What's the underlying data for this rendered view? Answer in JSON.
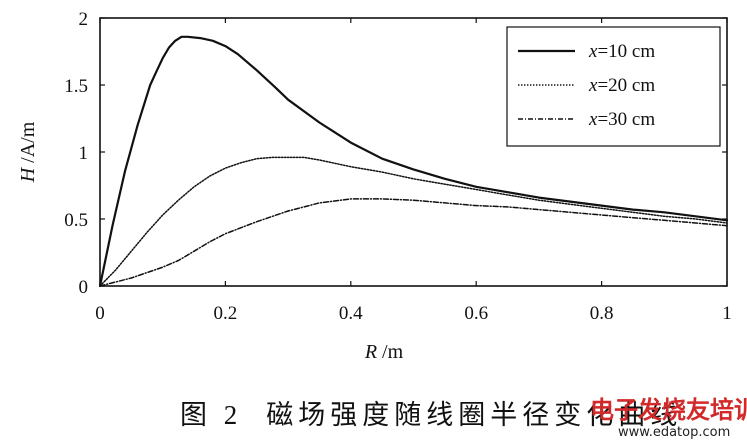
{
  "chart_data": {
    "type": "line",
    "xlabel_var": "R",
    "xlabel_unit": " /m",
    "ylabel_var": "H",
    "ylabel_unit": " /A/m",
    "xlim": [
      0,
      1
    ],
    "ylim": [
      0,
      2
    ],
    "x_ticks": [
      "0",
      "0.2",
      "0.4",
      "0.6",
      "0.8",
      "1"
    ],
    "x_tick_values": [
      0,
      0.2,
      0.4,
      0.6,
      0.8,
      1
    ],
    "y_ticks": [
      "0",
      "0.5",
      "1",
      "1.5",
      "2"
    ],
    "y_tick_values": [
      0,
      0.5,
      1,
      1.5,
      2
    ],
    "grid": false,
    "legend_position": "top-right",
    "series": [
      {
        "var": "x",
        "name_rest": "=10 cm",
        "style": "solid",
        "points": [
          [
            0,
            0
          ],
          [
            0.02,
            0.45
          ],
          [
            0.04,
            0.86
          ],
          [
            0.06,
            1.2
          ],
          [
            0.08,
            1.5
          ],
          [
            0.09,
            1.6
          ],
          [
            0.1,
            1.7
          ],
          [
            0.11,
            1.78
          ],
          [
            0.12,
            1.83
          ],
          [
            0.13,
            1.86
          ],
          [
            0.14,
            1.86
          ],
          [
            0.16,
            1.85
          ],
          [
            0.18,
            1.83
          ],
          [
            0.2,
            1.79
          ],
          [
            0.22,
            1.73
          ],
          [
            0.25,
            1.61
          ],
          [
            0.28,
            1.48
          ],
          [
            0.3,
            1.39
          ],
          [
            0.35,
            1.22
          ],
          [
            0.4,
            1.07
          ],
          [
            0.45,
            0.95
          ],
          [
            0.5,
            0.87
          ],
          [
            0.55,
            0.8
          ],
          [
            0.6,
            0.74
          ],
          [
            0.65,
            0.7
          ],
          [
            0.7,
            0.66
          ],
          [
            0.75,
            0.63
          ],
          [
            0.8,
            0.6
          ],
          [
            0.85,
            0.57
          ],
          [
            0.9,
            0.55
          ],
          [
            0.95,
            0.52
          ],
          [
            1.0,
            0.49
          ]
        ]
      },
      {
        "var": "x",
        "name_rest": "=20 cm",
        "style": "dotted",
        "points": [
          [
            0,
            0
          ],
          [
            0.025,
            0.12
          ],
          [
            0.05,
            0.26
          ],
          [
            0.075,
            0.4
          ],
          [
            0.1,
            0.53
          ],
          [
            0.125,
            0.64
          ],
          [
            0.15,
            0.74
          ],
          [
            0.175,
            0.82
          ],
          [
            0.2,
            0.88
          ],
          [
            0.225,
            0.92
          ],
          [
            0.25,
            0.95
          ],
          [
            0.275,
            0.96
          ],
          [
            0.3,
            0.96
          ],
          [
            0.325,
            0.96
          ],
          [
            0.35,
            0.94
          ],
          [
            0.4,
            0.89
          ],
          [
            0.45,
            0.85
          ],
          [
            0.5,
            0.8
          ],
          [
            0.55,
            0.76
          ],
          [
            0.6,
            0.72
          ],
          [
            0.65,
            0.68
          ],
          [
            0.7,
            0.64
          ],
          [
            0.75,
            0.61
          ],
          [
            0.8,
            0.58
          ],
          [
            0.85,
            0.55
          ],
          [
            0.9,
            0.52
          ],
          [
            0.95,
            0.5
          ],
          [
            1.0,
            0.47
          ]
        ]
      },
      {
        "var": "x",
        "name_rest": "=30 cm",
        "style": "dashdot",
        "points": [
          [
            0,
            0
          ],
          [
            0.05,
            0.06
          ],
          [
            0.1,
            0.14
          ],
          [
            0.125,
            0.19
          ],
          [
            0.15,
            0.26
          ],
          [
            0.175,
            0.33
          ],
          [
            0.2,
            0.39
          ],
          [
            0.25,
            0.48
          ],
          [
            0.3,
            0.56
          ],
          [
            0.35,
            0.62
          ],
          [
            0.4,
            0.65
          ],
          [
            0.45,
            0.65
          ],
          [
            0.5,
            0.64
          ],
          [
            0.55,
            0.62
          ],
          [
            0.6,
            0.6
          ],
          [
            0.65,
            0.59
          ],
          [
            0.7,
            0.57
          ],
          [
            0.75,
            0.55
          ],
          [
            0.8,
            0.53
          ],
          [
            0.85,
            0.51
          ],
          [
            0.9,
            0.49
          ],
          [
            0.95,
            0.47
          ],
          [
            1.0,
            0.45
          ]
        ]
      }
    ]
  },
  "caption": {
    "label": "图 2",
    "text": "磁场强度随线圈半径变化曲线"
  },
  "watermark": {
    "text": "电子发烧友培训",
    "url": "www.edatop.com"
  }
}
